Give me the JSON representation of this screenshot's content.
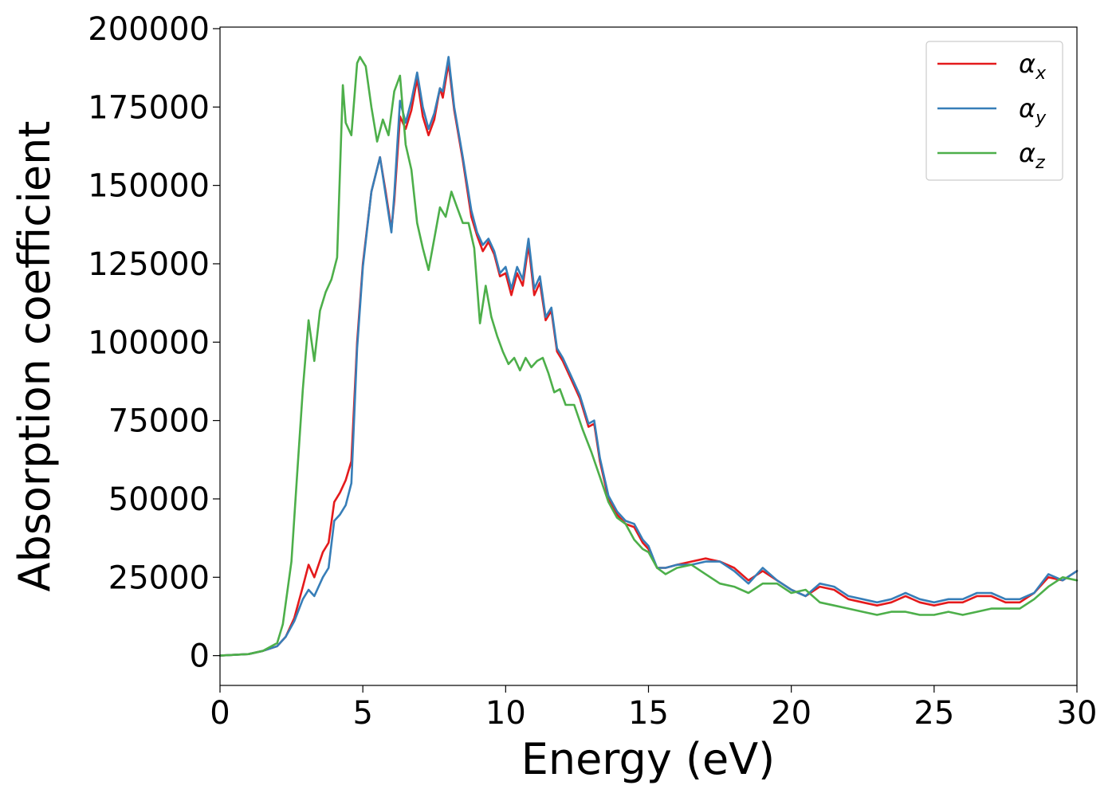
{
  "chart_data": {
    "type": "line",
    "title": "",
    "xlabel": "Energy (eV)",
    "ylabel": "Absorption coefficient",
    "xlim": [
      0,
      30
    ],
    "ylim": [
      -9500,
      200500
    ],
    "xticks": [
      0,
      5,
      10,
      15,
      20,
      25,
      30
    ],
    "xtick_labels": [
      "0",
      "5",
      "10",
      "15",
      "20",
      "25",
      "30"
    ],
    "yticks": [
      0,
      25000,
      50000,
      75000,
      100000,
      125000,
      150000,
      175000,
      200000
    ],
    "ytick_labels": [
      "0",
      "25000",
      "50000",
      "75000",
      "100000",
      "125000",
      "150000",
      "175000",
      "200000"
    ],
    "grid": false,
    "legend_position": "top-right",
    "series": [
      {
        "name": "α_x",
        "label_main": "α",
        "label_sub": "x",
        "color": "#e41a1c",
        "x": [
          0,
          1,
          1.5,
          2,
          2.3,
          2.6,
          2.9,
          3.1,
          3.3,
          3.6,
          3.8,
          4.0,
          4.2,
          4.4,
          4.6,
          4.8,
          5.0,
          5.3,
          5.6,
          5.8,
          6.0,
          6.1,
          6.3,
          6.5,
          6.7,
          6.9,
          7.1,
          7.3,
          7.5,
          7.7,
          7.8,
          8.0,
          8.2,
          8.5,
          8.8,
          9.0,
          9.2,
          9.4,
          9.6,
          9.8,
          10.0,
          10.2,
          10.4,
          10.6,
          10.8,
          11.0,
          11.2,
          11.4,
          11.6,
          11.8,
          12.0,
          12.3,
          12.6,
          12.9,
          13.1,
          13.3,
          13.6,
          13.9,
          14.2,
          14.5,
          14.8,
          15.0,
          15.3,
          15.6,
          16.0,
          16.5,
          17.0,
          17.5,
          18.0,
          18.5,
          19.0,
          19.5,
          20.0,
          20.5,
          21.0,
          21.5,
          22.0,
          22.5,
          23.0,
          23.5,
          24.0,
          24.5,
          25.0,
          25.5,
          26.0,
          26.5,
          27.0,
          27.5,
          28.0,
          28.5,
          29.0,
          29.5,
          30.0
        ],
        "y": [
          0,
          500,
          1500,
          3000,
          6000,
          12000,
          22000,
          29000,
          25000,
          33000,
          36000,
          49000,
          52000,
          56000,
          62000,
          100000,
          125000,
          148000,
          159000,
          148000,
          136000,
          145000,
          172000,
          168000,
          174000,
          184000,
          172000,
          166000,
          171000,
          181000,
          178000,
          189000,
          174000,
          158000,
          140000,
          134000,
          129000,
          132000,
          128000,
          121000,
          122000,
          115000,
          122000,
          118000,
          131000,
          115000,
          119000,
          107000,
          110000,
          97000,
          94000,
          88000,
          82000,
          73000,
          74000,
          62000,
          50000,
          45000,
          42000,
          41000,
          36000,
          34000,
          28000,
          28000,
          29000,
          30000,
          31000,
          30000,
          28000,
          24000,
          27000,
          24000,
          21000,
          19000,
          22000,
          21000,
          18000,
          17000,
          16000,
          17000,
          19000,
          17000,
          16000,
          17000,
          17000,
          19000,
          19000,
          17000,
          17000,
          20000,
          25000,
          24000,
          27000
        ]
      },
      {
        "name": "α_y",
        "label_main": "α",
        "label_sub": "y",
        "color": "#377eb8",
        "x": [
          0,
          1,
          1.5,
          2,
          2.3,
          2.6,
          2.9,
          3.1,
          3.3,
          3.6,
          3.8,
          4.0,
          4.2,
          4.4,
          4.6,
          4.8,
          5.0,
          5.3,
          5.6,
          5.8,
          6.0,
          6.1,
          6.3,
          6.5,
          6.7,
          6.9,
          7.1,
          7.3,
          7.5,
          7.7,
          7.8,
          8.0,
          8.2,
          8.5,
          8.8,
          9.0,
          9.2,
          9.4,
          9.6,
          9.8,
          10.0,
          10.2,
          10.4,
          10.6,
          10.8,
          11.0,
          11.2,
          11.4,
          11.6,
          11.8,
          12.0,
          12.3,
          12.6,
          12.9,
          13.1,
          13.3,
          13.6,
          13.9,
          14.2,
          14.5,
          14.8,
          15.0,
          15.3,
          15.6,
          16.0,
          16.5,
          17.0,
          17.5,
          18.0,
          18.5,
          19.0,
          19.5,
          20.0,
          20.5,
          21.0,
          21.5,
          22.0,
          22.5,
          23.0,
          23.5,
          24.0,
          24.5,
          25.0,
          25.5,
          26.0,
          26.5,
          27.0,
          27.5,
          28.0,
          28.5,
          29.0,
          29.5,
          30.0
        ],
        "y": [
          0,
          500,
          1500,
          3000,
          6000,
          11000,
          18000,
          21000,
          19000,
          25000,
          28000,
          43000,
          45000,
          48000,
          55000,
          98000,
          124000,
          148000,
          159000,
          147000,
          135000,
          147000,
          177000,
          170000,
          177000,
          186000,
          175000,
          168000,
          173000,
          181000,
          180000,
          191000,
          175000,
          159000,
          142000,
          135000,
          131000,
          133000,
          129000,
          122000,
          124000,
          117000,
          124000,
          120000,
          133000,
          117000,
          121000,
          108000,
          111000,
          98000,
          95000,
          89000,
          83000,
          74000,
          75000,
          63000,
          51000,
          46000,
          43000,
          42000,
          37000,
          35000,
          28000,
          28000,
          29000,
          29000,
          30000,
          30000,
          27000,
          23000,
          28000,
          24000,
          21000,
          19000,
          23000,
          22000,
          19000,
          18000,
          17000,
          18000,
          20000,
          18000,
          17000,
          18000,
          18000,
          20000,
          20000,
          18000,
          18000,
          20000,
          26000,
          24000,
          27000
        ]
      },
      {
        "name": "α_z",
        "label_main": "α",
        "label_sub": "z",
        "color": "#4daf4a",
        "x": [
          0,
          1,
          1.5,
          2,
          2.2,
          2.5,
          2.7,
          2.9,
          3.1,
          3.3,
          3.5,
          3.7,
          3.9,
          4.1,
          4.3,
          4.4,
          4.6,
          4.8,
          4.9,
          5.1,
          5.3,
          5.5,
          5.7,
          5.9,
          6.1,
          6.3,
          6.5,
          6.7,
          6.9,
          7.1,
          7.3,
          7.5,
          7.7,
          7.9,
          8.1,
          8.3,
          8.5,
          8.7,
          8.9,
          9.1,
          9.3,
          9.5,
          9.7,
          9.9,
          10.1,
          10.3,
          10.5,
          10.7,
          10.9,
          11.1,
          11.3,
          11.5,
          11.7,
          11.9,
          12.1,
          12.4,
          12.7,
          13.0,
          13.3,
          13.6,
          13.9,
          14.2,
          14.5,
          14.8,
          15.0,
          15.3,
          15.6,
          16.0,
          16.5,
          17.0,
          17.5,
          18.0,
          18.5,
          19.0,
          19.5,
          20.0,
          20.5,
          21.0,
          21.5,
          22.0,
          22.5,
          23.0,
          23.5,
          24.0,
          24.5,
          25.0,
          25.5,
          26.0,
          26.5,
          27.0,
          27.5,
          28.0,
          28.5,
          29.0,
          29.5,
          30.0
        ],
        "y": [
          0,
          500,
          1500,
          4000,
          10000,
          30000,
          58000,
          85000,
          107000,
          94000,
          110000,
          116000,
          120000,
          127000,
          182000,
          170000,
          166000,
          189000,
          191000,
          188000,
          175000,
          164000,
          171000,
          166000,
          180000,
          185000,
          163000,
          155000,
          138000,
          130000,
          123000,
          133000,
          143000,
          140000,
          148000,
          143000,
          138000,
          138000,
          130000,
          106000,
          118000,
          108000,
          102000,
          97000,
          93000,
          95000,
          91000,
          95000,
          92000,
          94000,
          95000,
          90000,
          84000,
          85000,
          80000,
          80000,
          72000,
          65000,
          57000,
          49000,
          44000,
          42000,
          37000,
          34000,
          33000,
          28000,
          26000,
          28000,
          29000,
          26000,
          23000,
          22000,
          20000,
          23000,
          23000,
          20000,
          21000,
          17000,
          16000,
          15000,
          14000,
          13000,
          14000,
          14000,
          13000,
          13000,
          14000,
          13000,
          14000,
          15000,
          15000,
          15000,
          18000,
          22000,
          25000,
          24000
        ]
      }
    ]
  }
}
